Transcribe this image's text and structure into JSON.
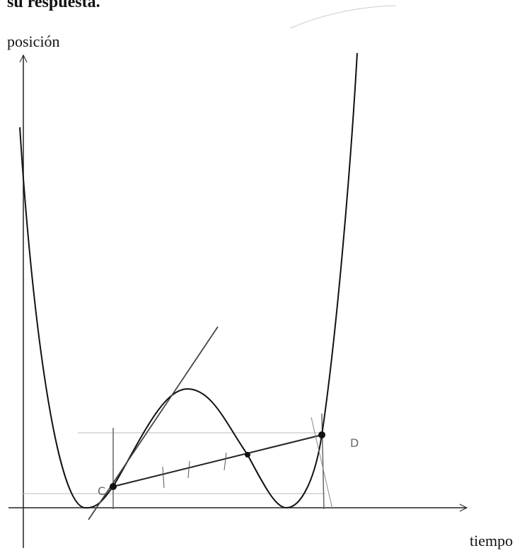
{
  "header": {
    "title": "su respuesta."
  },
  "axes": {
    "y_label": "posición",
    "x_label": "tiempo"
  },
  "points": [
    {
      "label": "C"
    },
    {
      "label": "D"
    }
  ]
}
